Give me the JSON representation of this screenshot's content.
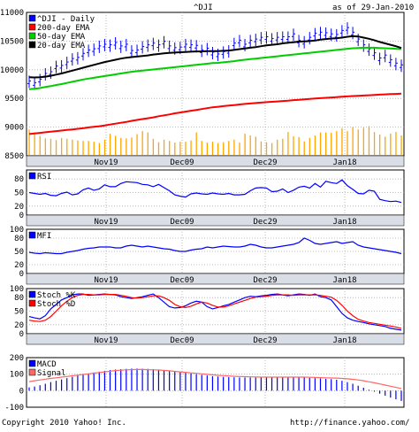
{
  "header": {
    "symbol": "^DJI",
    "as_of": "as of 29-Jan-2010"
  },
  "footer": {
    "copyright": "Copyright 2010 Yahoo! Inc.",
    "url": "http://finance.yahoo.com/"
  },
  "colors": {
    "price": "#0000ff",
    "ema200": "#ff0000",
    "ema50": "#00cc00",
    "ema20": "#000000",
    "volume": "#ffa500",
    "band": "#d9dde6",
    "indicator": "#0000ff",
    "stochD": "#ff0000",
    "signal": "#ff6666",
    "grid": "#aaaaaa"
  },
  "x_ticks": [
    "Nov19",
    "Dec09",
    "Dec29",
    "Jan18"
  ],
  "chart_data": [
    {
      "type": "line",
      "panel": "price",
      "ylim": [
        8500,
        11000
      ],
      "yticks": [
        8500,
        9000,
        9500,
        10000,
        10500,
        11000
      ],
      "legend": [
        "^DJI - Daily",
        "200-day EMA",
        "50-day EMA",
        "20-day EMA"
      ],
      "x_ticks": [
        "Nov19",
        "Dec09",
        "Dec29",
        "Jan18"
      ],
      "series": [
        {
          "name": "^DJI - Daily",
          "style": "ohlc",
          "values": [
            9790,
            9760,
            9820,
            9920,
            9950,
            10050,
            10060,
            10120,
            10180,
            10200,
            10270,
            10330,
            10350,
            10400,
            10430,
            10420,
            10460,
            10400,
            10430,
            10320,
            10330,
            10390,
            10420,
            10450,
            10420,
            10480,
            10400,
            10370,
            10380,
            10430,
            10420,
            10410,
            10330,
            10360,
            10290,
            10260,
            10300,
            10320,
            10450,
            10500,
            10430,
            10500,
            10520,
            10550,
            10560,
            10530,
            10550,
            10560,
            10560,
            10610,
            10500,
            10480,
            10550,
            10620,
            10640,
            10630,
            10610,
            10600,
            10670,
            10720,
            10640,
            10520,
            10420,
            10350,
            10280,
            10190,
            10240,
            10160,
            10100,
            10070
          ]
        },
        {
          "name": "200-day EMA",
          "values": [
            8880,
            8890,
            8900,
            8910,
            8920,
            8930,
            8940,
            8950,
            8960,
            8970,
            8980,
            8995,
            9005,
            9015,
            9030,
            9045,
            9060,
            9075,
            9090,
            9110,
            9125,
            9140,
            9155,
            9170,
            9190,
            9205,
            9220,
            9240,
            9255,
            9270,
            9285,
            9300,
            9315,
            9330,
            9345,
            9355,
            9365,
            9375,
            9385,
            9395,
            9405,
            9412,
            9420,
            9428,
            9435,
            9442,
            9448,
            9455,
            9462,
            9470,
            9477,
            9484,
            9491,
            9498,
            9505,
            9511,
            9517,
            9523,
            9529,
            9535,
            9541,
            9546,
            9551,
            9556,
            9561,
            9566,
            9571,
            9575,
            9579,
            9583
          ]
        },
        {
          "name": "50-day EMA",
          "values": [
            9660,
            9670,
            9680,
            9700,
            9715,
            9735,
            9750,
            9770,
            9790,
            9810,
            9830,
            9845,
            9860,
            9875,
            9890,
            9905,
            9920,
            9935,
            9950,
            9965,
            9975,
            9985,
            9995,
            10005,
            10015,
            10025,
            10035,
            10045,
            10055,
            10065,
            10075,
            10085,
            10095,
            10105,
            10115,
            10120,
            10130,
            10140,
            10150,
            10165,
            10175,
            10185,
            10195,
            10205,
            10215,
            10225,
            10235,
            10245,
            10255,
            10265,
            10275,
            10285,
            10295,
            10305,
            10315,
            10325,
            10335,
            10345,
            10355,
            10365,
            10375,
            10380,
            10385,
            10385,
            10385,
            10380,
            10375,
            10370,
            10365,
            10360
          ]
        },
        {
          "name": "20-day EMA",
          "values": [
            9870,
            9865,
            9870,
            9880,
            9895,
            9915,
            9935,
            9960,
            9985,
            10010,
            10035,
            10060,
            10085,
            10110,
            10135,
            10155,
            10175,
            10195,
            10210,
            10220,
            10230,
            10240,
            10250,
            10265,
            10275,
            10285,
            10295,
            10300,
            10305,
            10310,
            10315,
            10320,
            10320,
            10325,
            10325,
            10325,
            10330,
            10335,
            10345,
            10360,
            10370,
            10385,
            10395,
            10410,
            10425,
            10435,
            10445,
            10460,
            10470,
            10480,
            10490,
            10495,
            10500,
            10510,
            10525,
            10535,
            10545,
            10550,
            10560,
            10575,
            10585,
            10580,
            10560,
            10540,
            10515,
            10485,
            10460,
            10435,
            10410,
            10380
          ]
        }
      ],
      "volume": {
        "name": "Volume",
        "values": [
          0.62,
          0.55,
          0.47,
          0.41,
          0.4,
          0.37,
          0.42,
          0.4,
          0.38,
          0.36,
          0.35,
          0.35,
          0.33,
          0.3,
          0.38,
          0.52,
          0.47,
          0.42,
          0.41,
          0.43,
          0.51,
          0.58,
          0.55,
          0.4,
          0.32,
          0.38,
          0.35,
          0.31,
          0.33,
          0.33,
          0.36,
          0.55,
          0.35,
          0.31,
          0.33,
          0.3,
          0.32,
          0.35,
          0.38,
          0.31,
          0.52,
          0.48,
          0.45,
          0.34,
          0.32,
          0.3,
          0.38,
          0.4,
          0.56,
          0.46,
          0.44,
          0.34,
          0.42,
          0.48,
          0.55,
          0.55,
          0.54,
          0.58,
          0.65,
          0.58,
          0.68,
          0.62,
          0.66,
          0.7,
          0.56,
          0.5,
          0.45,
          0.52,
          0.56,
          0.48
        ]
      }
    },
    {
      "type": "line",
      "panel": "rsi",
      "ylim": [
        0,
        100
      ],
      "yticks": [
        0,
        20,
        50,
        80
      ],
      "legend": [
        "RSI"
      ],
      "x_ticks": [
        "Nov19",
        "Dec09",
        "Dec29",
        "Jan18"
      ],
      "series": [
        {
          "name": "RSI",
          "values": [
            50,
            48,
            46,
            48,
            44,
            43,
            48,
            51,
            45,
            47,
            56,
            60,
            55,
            58,
            67,
            63,
            63,
            70,
            74,
            73,
            72,
            68,
            67,
            63,
            68,
            61,
            54,
            45,
            42,
            40,
            47,
            49,
            47,
            46,
            49,
            47,
            46,
            48,
            45,
            45,
            46,
            54,
            60,
            61,
            60,
            52,
            53,
            58,
            50,
            55,
            62,
            64,
            60,
            70,
            62,
            75,
            72,
            70,
            78,
            65,
            57,
            48,
            47,
            55,
            53,
            35,
            32,
            30,
            31,
            28
          ]
        }
      ]
    },
    {
      "type": "line",
      "panel": "mfi",
      "ylim": [
        0,
        100
      ],
      "yticks": [
        0,
        20,
        50,
        80,
        100
      ],
      "legend": [
        "MFI"
      ],
      "x_ticks": [
        "Nov19",
        "Dec09",
        "Dec29",
        "Jan18"
      ],
      "series": [
        {
          "name": "MFI",
          "values": [
            48,
            46,
            45,
            47,
            46,
            45,
            45,
            48,
            50,
            52,
            55,
            57,
            58,
            60,
            60,
            60,
            58,
            58,
            62,
            64,
            62,
            60,
            62,
            60,
            58,
            56,
            55,
            52,
            50,
            50,
            53,
            55,
            56,
            60,
            58,
            60,
            62,
            61,
            60,
            60,
            62,
            66,
            64,
            60,
            58,
            58,
            60,
            62,
            64,
            66,
            70,
            80,
            75,
            68,
            66,
            68,
            70,
            72,
            68,
            70,
            72,
            64,
            60,
            58,
            56,
            54,
            52,
            50,
            48,
            45
          ]
        }
      ]
    },
    {
      "type": "line",
      "panel": "stoch",
      "ylim": [
        0,
        100
      ],
      "yticks": [
        0,
        20,
        50,
        80,
        100
      ],
      "legend": [
        "Stoch %K",
        "Stoch %D"
      ],
      "x_ticks": [
        "Nov19",
        "Dec09",
        "Dec29",
        "Jan18"
      ],
      "series": [
        {
          "name": "Stoch %K",
          "values": [
            38,
            35,
            33,
            40,
            55,
            65,
            75,
            80,
            86,
            88,
            88,
            85,
            86,
            87,
            88,
            87,
            86,
            82,
            80,
            78,
            80,
            82,
            85,
            88,
            80,
            70,
            60,
            57,
            58,
            62,
            68,
            72,
            70,
            60,
            55,
            58,
            62,
            65,
            70,
            75,
            80,
            83,
            82,
            84,
            85,
            87,
            88,
            86,
            84,
            86,
            88,
            87,
            85,
            88,
            82,
            80,
            75,
            60,
            45,
            35,
            30,
            27,
            25,
            22,
            20,
            18,
            16,
            12,
            10,
            8
          ]
        },
        {
          "name": "Stoch %D",
          "values": [
            30,
            28,
            27,
            30,
            38,
            50,
            62,
            72,
            80,
            85,
            87,
            87,
            86,
            86,
            87,
            87,
            87,
            85,
            83,
            80,
            79,
            80,
            82,
            84,
            84,
            80,
            74,
            65,
            60,
            58,
            61,
            66,
            70,
            68,
            63,
            59,
            59,
            62,
            66,
            70,
            74,
            78,
            81,
            82,
            83,
            85,
            86,
            86,
            86,
            85,
            86,
            86,
            86,
            86,
            85,
            83,
            81,
            74,
            63,
            50,
            40,
            32,
            28,
            25,
            23,
            21,
            19,
            17,
            15,
            12
          ]
        }
      ]
    },
    {
      "type": "bar",
      "panel": "macd",
      "ylim": [
        -100,
        200
      ],
      "yticks": [
        -100,
        0,
        100,
        200
      ],
      "legend": [
        "MACD",
        "Signal"
      ],
      "x_ticks": [
        "Nov19",
        "Dec09",
        "Dec29",
        "Jan18"
      ],
      "series": [
        {
          "name": "MACD",
          "style": "bar",
          "values": [
            20,
            25,
            33,
            42,
            52,
            60,
            68,
            76,
            84,
            92,
            98,
            104,
            110,
            115,
            120,
            125,
            128,
            130,
            132,
            134,
            134,
            133,
            132,
            130,
            128,
            124,
            120,
            116,
            112,
            108,
            104,
            100,
            96,
            92,
            88,
            86,
            84,
            82,
            81,
            80,
            80,
            80,
            80,
            80,
            81,
            82,
            83,
            84,
            84,
            83,
            82,
            80,
            78,
            76,
            74,
            72,
            70,
            66,
            60,
            52,
            42,
            30,
            18,
            6,
            -6,
            -18,
            -30,
            -42,
            -52,
            -62
          ]
        },
        {
          "name": "Signal",
          "values": [
            55,
            60,
            65,
            70,
            74,
            78,
            82,
            86,
            90,
            94,
            98,
            102,
            106,
            110,
            114,
            118,
            122,
            124,
            126,
            127,
            128,
            128,
            127,
            126,
            125,
            123,
            120,
            117,
            114,
            111,
            108,
            105,
            102,
            99,
            96,
            93,
            91,
            89,
            87,
            86,
            85,
            84,
            83,
            82,
            82,
            82,
            82,
            82,
            82,
            82,
            82,
            82,
            81,
            80,
            79,
            78,
            77,
            76,
            74,
            72,
            69,
            65,
            60,
            54,
            48,
            41,
            34,
            27,
            20,
            13
          ]
        }
      ]
    }
  ]
}
